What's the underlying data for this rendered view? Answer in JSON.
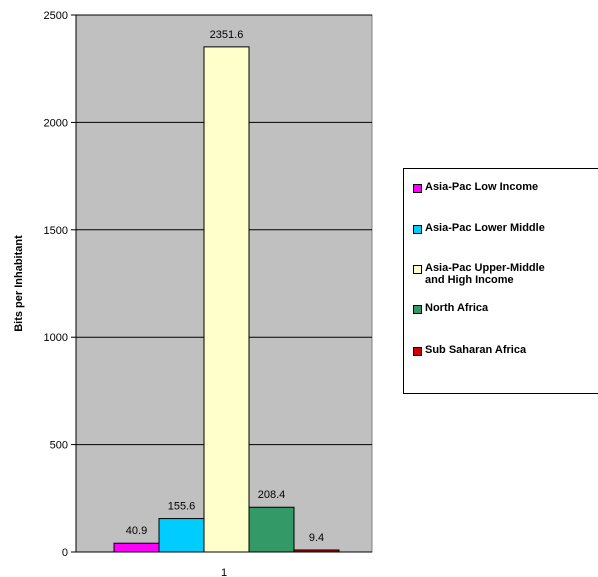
{
  "chart_data": {
    "type": "bar",
    "categories": [
      "1"
    ],
    "series": [
      {
        "name": "Asia-Pac Low Income",
        "values": [
          40.9
        ],
        "color": "#ff00ff"
      },
      {
        "name": "Asia-Pac Lower Middle",
        "values": [
          155.6
        ],
        "color": "#00ccff"
      },
      {
        "name": "Asia-Pac Upper-Middle and High Income",
        "values": [
          2351.6
        ],
        "color": "#ffffcc"
      },
      {
        "name": "North Africa",
        "values": [
          208.4
        ],
        "color": "#339966"
      },
      {
        "name": "Sub Saharan Africa",
        "values": [
          9.4
        ],
        "color": "#cc0000"
      }
    ],
    "data_labels": [
      "40.9",
      "155.6",
      "2351.6",
      "208.4",
      "9.4"
    ],
    "ylabel": "Bits per Inhabitant",
    "xlabel": "",
    "ylim": [
      0,
      2500
    ],
    "yticks": [
      0,
      500,
      1000,
      1500,
      2000,
      2500
    ],
    "grid": true,
    "plot_background": "#c0c0c0",
    "legend_position": "right"
  },
  "legend": {
    "items": [
      {
        "line1": "Asia-Pac Low Income",
        "line2": ""
      },
      {
        "line1": "Asia-Pac Lower Middle",
        "line2": ""
      },
      {
        "line1": "Asia-Pac Upper-Middle",
        "line2": "and High Income"
      },
      {
        "line1": "North Africa",
        "line2": ""
      },
      {
        "line1": "Sub Saharan Africa",
        "line2": ""
      }
    ]
  }
}
